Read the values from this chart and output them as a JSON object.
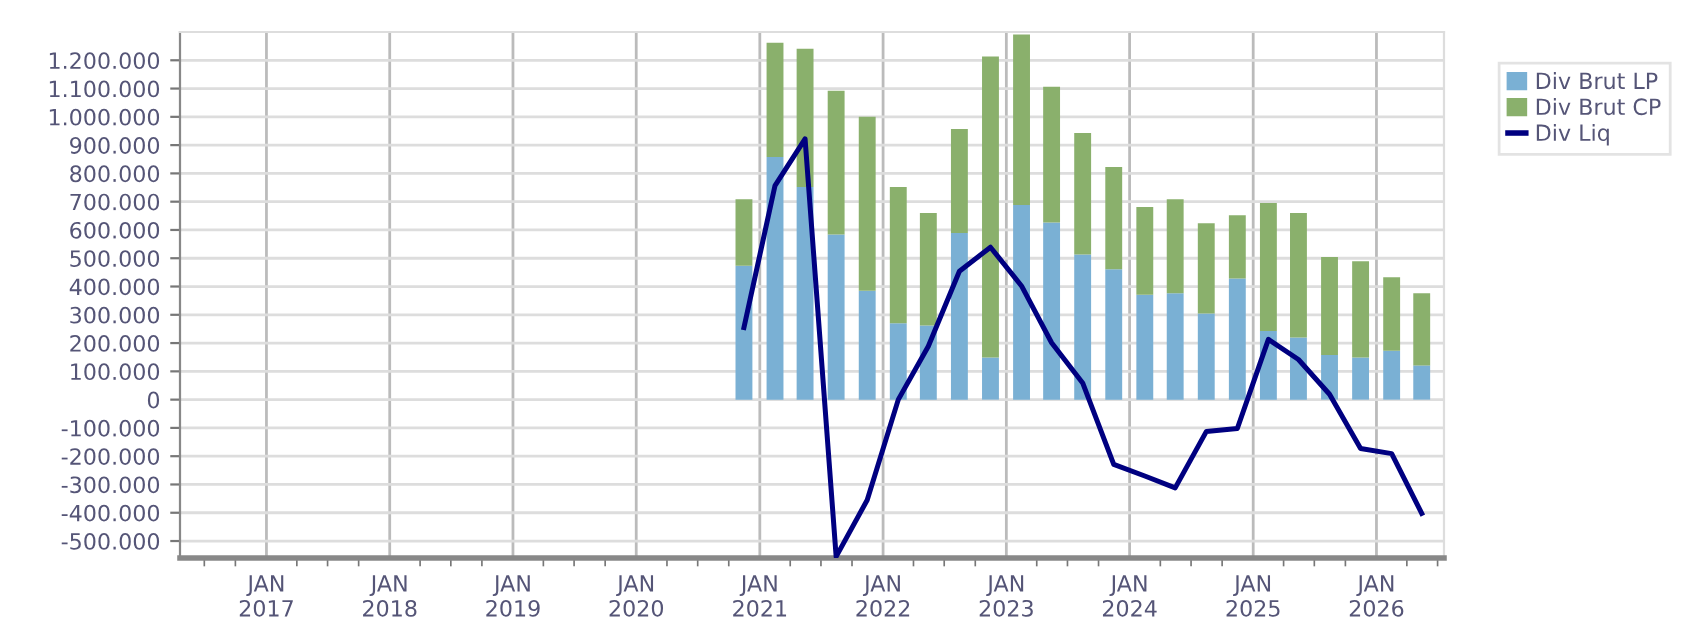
{
  "chart_data": {
    "type": "bar",
    "stacked": true,
    "x": [
      "2020-11-15",
      "2021-02-15",
      "2021-05-15",
      "2021-08-15",
      "2021-11-15",
      "2022-02-15",
      "2022-05-15",
      "2022-08-15",
      "2022-11-15",
      "2023-02-15",
      "2023-05-15",
      "2023-08-15",
      "2023-11-15",
      "2024-02-15",
      "2024-05-15",
      "2024-08-15",
      "2024-11-15",
      "2025-02-15",
      "2025-05-15",
      "2025-08-15",
      "2025-11-15",
      "2026-02-15",
      "2026-05-15"
    ],
    "series": [
      {
        "name": "Div Brut LP",
        "color": "#7ab0d4",
        "values": [
          473000,
          858000,
          752000,
          584000,
          385000,
          270000,
          262000,
          589000,
          149000,
          688000,
          626000,
          513000,
          461000,
          371000,
          376000,
          305000,
          428000,
          243000,
          220000,
          158000,
          149000,
          173000,
          121000
        ]
      },
      {
        "name": "Div Brut CP",
        "color": "#8ab06c",
        "values": [
          236000,
          404000,
          489000,
          508000,
          615000,
          482000,
          398000,
          368000,
          1064000,
          603000,
          480000,
          430000,
          362000,
          310000,
          333000,
          319000,
          224000,
          452000,
          440000,
          346000,
          340000,
          260000,
          255000
        ]
      },
      {
        "name": "Div Liq",
        "type": "line",
        "color": "#000080",
        "values": [
          255000,
          757000,
          922000,
          -555000,
          -355000,
          0,
          189000,
          454000,
          539000,
          402000,
          201000,
          59000,
          -229000,
          -270000,
          -312000,
          -113000,
          -102000,
          213000,
          142000,
          19000,
          -173000,
          -191000,
          -402000
        ]
      }
    ],
    "xlim": [
      "2016-04-20",
      "2026-07-20"
    ],
    "xticks": [
      {
        "value": "2017-01-01",
        "label": "JAN\n2017"
      },
      {
        "value": "2018-01-01",
        "label": "JAN\n2018"
      },
      {
        "value": "2019-01-01",
        "label": "JAN\n2019"
      },
      {
        "value": "2020-01-01",
        "label": "JAN\n2020"
      },
      {
        "value": "2021-01-01",
        "label": "JAN\n2021"
      },
      {
        "value": "2022-01-01",
        "label": "JAN\n2022"
      },
      {
        "value": "2023-01-01",
        "label": "JAN\n2023"
      },
      {
        "value": "2024-01-01",
        "label": "JAN\n2024"
      },
      {
        "value": "2025-01-01",
        "label": "JAN\n2025"
      },
      {
        "value": "2026-01-01",
        "label": "JAN\n2026"
      }
    ],
    "ylim": [
      -560000,
      1300000
    ],
    "yticks": [
      {
        "value": -500000,
        "label": "-500.000"
      },
      {
        "value": -400000,
        "label": "-400.000"
      },
      {
        "value": -300000,
        "label": "-300.000"
      },
      {
        "value": -200000,
        "label": "-200.000"
      },
      {
        "value": -100000,
        "label": "-100.000"
      },
      0,
      {
        "value": 100000,
        "label": "100.000"
      },
      {
        "value": 200000,
        "label": "200.000"
      },
      {
        "value": 300000,
        "label": "300.000"
      },
      {
        "value": 400000,
        "label": "400.000"
      },
      {
        "value": 500000,
        "label": "500.000"
      },
      {
        "value": 600000,
        "label": "600.000"
      },
      {
        "value": 700000,
        "label": "700.000"
      },
      {
        "value": 800000,
        "label": "800.000"
      },
      {
        "value": 900000,
        "label": "900.000"
      },
      {
        "value": 1000000,
        "label": "1.000.000"
      },
      {
        "value": 1100000,
        "label": "1.100.000"
      },
      {
        "value": 1200000,
        "label": "1.200.000"
      }
    ],
    "grid": true,
    "legend": "top right",
    "marker": "none",
    "line_style": "solid"
  }
}
